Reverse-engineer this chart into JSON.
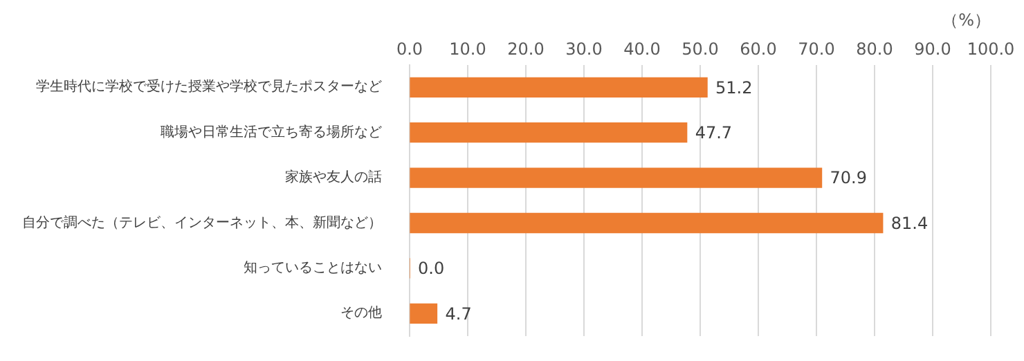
{
  "chart_data": {
    "type": "bar",
    "orientation": "horizontal",
    "xlabel": "（%）",
    "categories": [
      "学生時代に学校で受けた授業や学校で見たポスターなど",
      "職場や日常生活で立ち寄る場所など",
      "家族や友人の話",
      "自分で調べた（テレビ、インターネット、本、新聞など）",
      "知っていることはない",
      "その他"
    ],
    "values": [
      51.2,
      47.7,
      70.9,
      81.4,
      0,
      4.7
    ],
    "value_labels": [
      "51.2",
      "47.7",
      "70.9",
      "81.4",
      "0.0",
      "4.7"
    ],
    "color": "#ed7d31",
    "xlim": [
      0,
      100
    ],
    "xticks": [
      {
        "value": 0,
        "label": "0.0"
      },
      {
        "value": 10,
        "label": "10.0"
      },
      {
        "value": 20,
        "label": "20.0"
      },
      {
        "value": 30,
        "label": "30.0"
      },
      {
        "value": 40,
        "label": "40.0"
      },
      {
        "value": 50,
        "label": "50.0"
      },
      {
        "value": 60,
        "label": "60.0"
      },
      {
        "value": 70,
        "label": "70.0"
      },
      {
        "value": 80,
        "label": "80.0"
      },
      {
        "value": 90,
        "label": "90.0"
      },
      {
        "value": 100,
        "label": "100.0"
      }
    ],
    "grid": "x",
    "legend": false
  }
}
